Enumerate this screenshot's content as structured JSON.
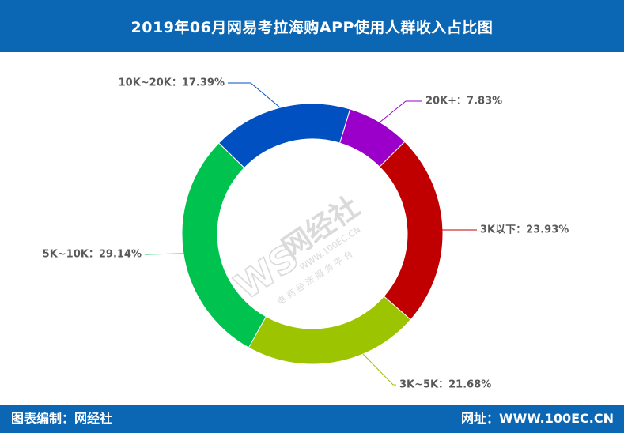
{
  "footer": {
    "source": "图表编制：网经社",
    "website": "网址：WWW.100EC.CN"
  },
  "watermark": {
    "logo": "WS",
    "name": "网经社",
    "url": "WWW.100EC.CN",
    "slogan": "电 商 经 济 服 务 平 台"
  },
  "colors": {
    "brand": "#0B66B4",
    "label_text": "#595959"
  },
  "chart_data": {
    "type": "pie",
    "donut": true,
    "title": "2019年06月网易考拉海购APP使用人群收入占比图",
    "unit": "%",
    "slices": [
      {
        "name": "3K以下",
        "value": 23.93,
        "color": "#C00000"
      },
      {
        "name": "3K~5K",
        "value": 21.68,
        "color": "#9CC400"
      },
      {
        "name": "5K~10K",
        "value": 29.14,
        "color": "#00C24F"
      },
      {
        "name": "10K~20K",
        "value": 17.39,
        "color": "#0050C2"
      },
      {
        "name": "20K+",
        "value": 7.83,
        "color": "#9A00C9"
      }
    ]
  }
}
